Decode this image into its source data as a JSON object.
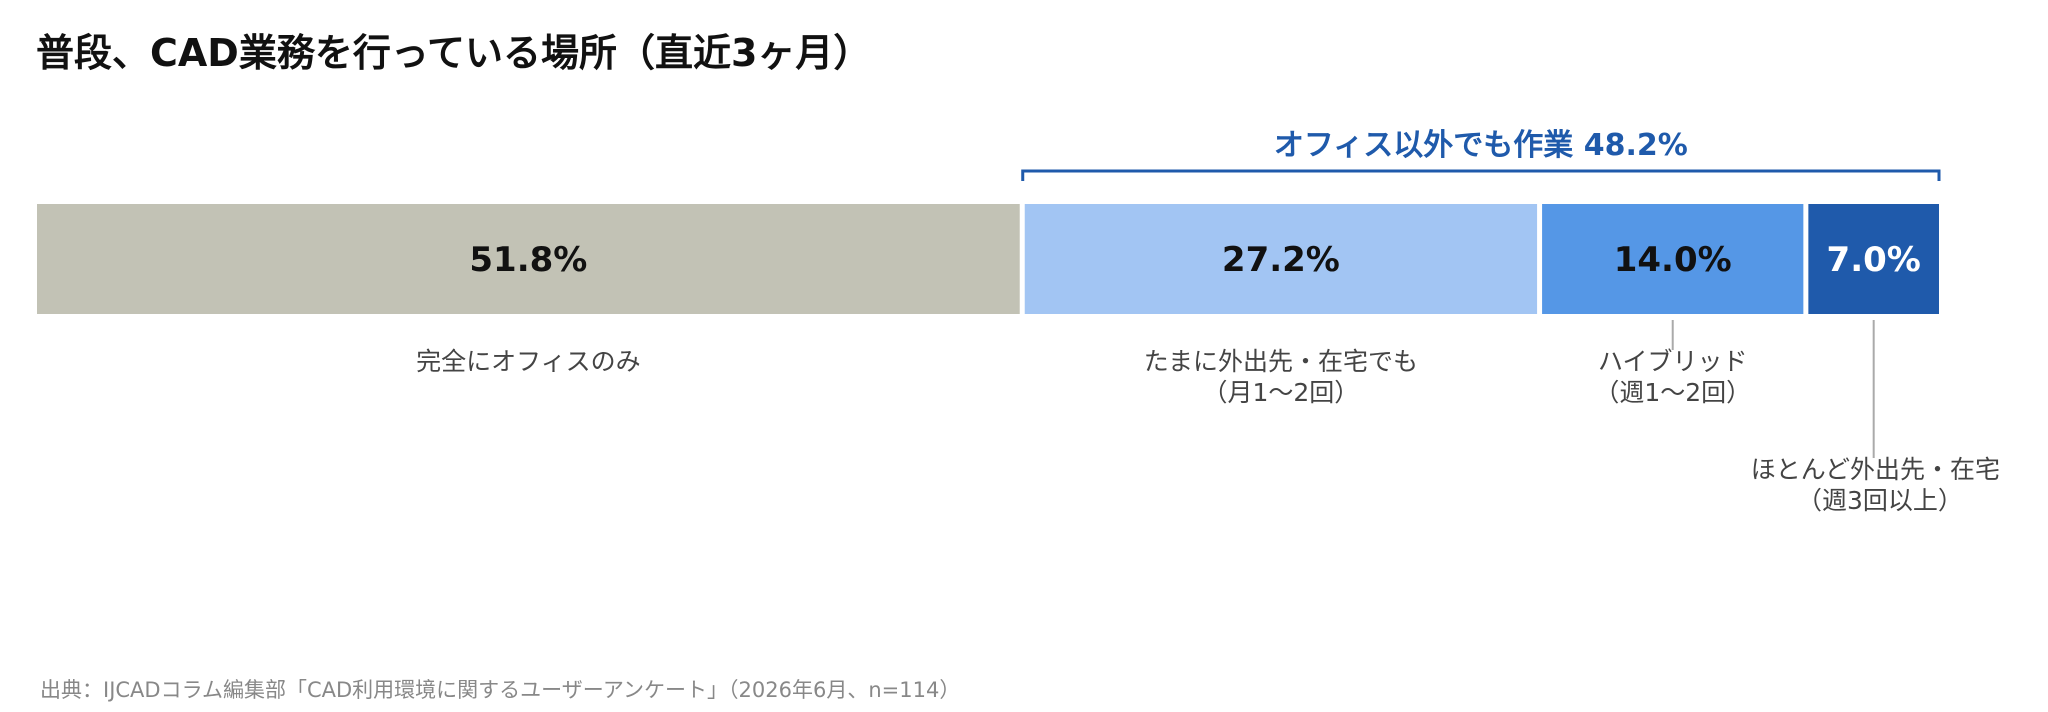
{
  "title": "普段、CAD業務を行っている場所（直近3ヶ月）",
  "footnote": "出典：IJCADコラム編集部「CAD利用環境に関するユーザーアンケート」（2026年6月、n=114）",
  "colors": {
    "office_only": "#c2c2b5",
    "sometimes": "#a2c5f3",
    "hybrid": "#5597e6",
    "mostly_remote": "#1f5aab",
    "bracket": "#1f5aab",
    "label_text": "#444444",
    "leader_line": "#aaaaaa"
  },
  "chart_data": {
    "type": "bar",
    "orientation": "horizontal-stacked-100",
    "title": "普段、CAD業務を行っている場所（直近3ヶ月）",
    "unit": "%",
    "segments": [
      {
        "key": "office_only",
        "value": 51.8,
        "value_label": "51.8%",
        "category_lines": [
          "完全にオフィスのみ"
        ],
        "color": "#c2c2b5",
        "value_text_color": "#111111",
        "leader": false
      },
      {
        "key": "sometimes",
        "value": 27.2,
        "value_label": "27.2%",
        "category_lines": [
          "たまに外出先・在宅でも",
          "（月1〜2回）"
        ],
        "color": "#a2c5f3",
        "value_text_color": "#111111",
        "leader": false
      },
      {
        "key": "hybrid",
        "value": 14.0,
        "value_label": "14.0%",
        "category_lines": [
          "ハイブリッド",
          "（週1〜2回）"
        ],
        "color": "#5597e6",
        "value_text_color": "#111111",
        "leader": true
      },
      {
        "key": "mostly_remote",
        "value": 7.0,
        "value_label": "7.0%",
        "category_lines": [
          "ほとんど外出先・在宅",
          "（週3回以上）"
        ],
        "color": "#1f5aab",
        "value_text_color": "#ffffff",
        "leader": true
      }
    ],
    "bracket": {
      "label": "オフィス以外でも作業 48.2%",
      "value": 48.2,
      "spans_segments": [
        "sometimes",
        "hybrid",
        "mostly_remote"
      ]
    }
  }
}
